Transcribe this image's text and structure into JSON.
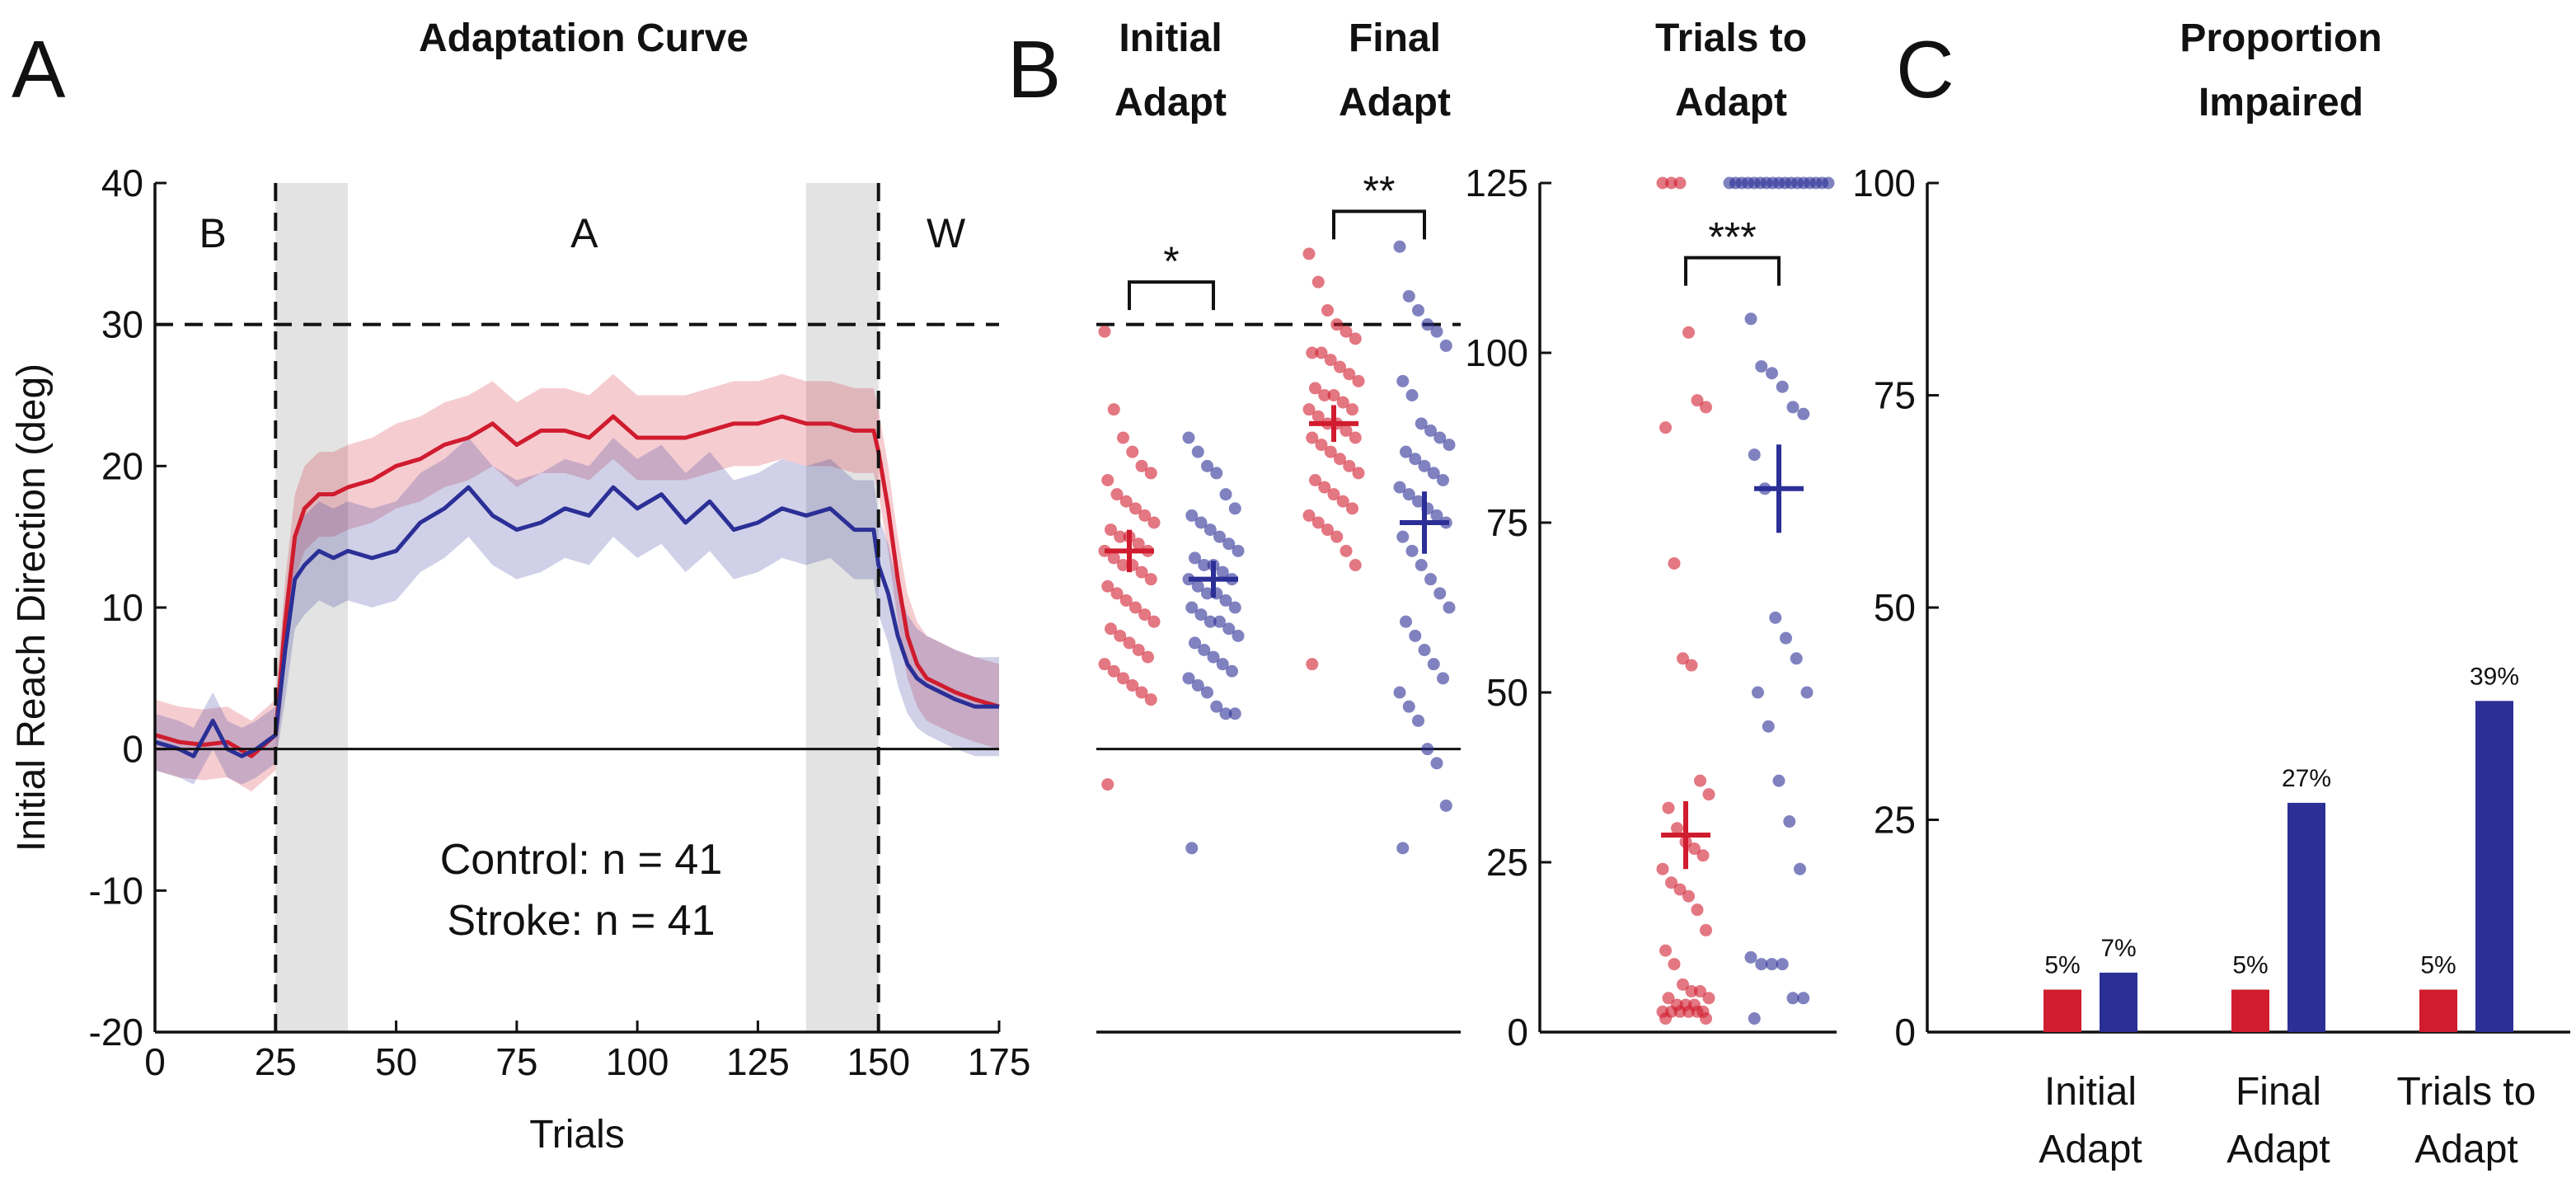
{
  "panels": {
    "A": {
      "letter": "A",
      "title": "Adaptation Curve"
    },
    "B": {
      "letter": "B",
      "titles": [
        [
          "Initial",
          "Adapt"
        ],
        [
          "Final",
          "Adapt"
        ],
        [
          "Trials to",
          "Adapt"
        ]
      ]
    },
    "C": {
      "letter": "C",
      "title": [
        "Proportion",
        "Impaired"
      ]
    }
  },
  "colors": {
    "control": "#d01c2e",
    "stroke": "#2b2f96",
    "shade": "#e3e3e3"
  },
  "chart_data": [
    {
      "id": "adaptation-curve",
      "type": "line",
      "title": "Adaptation Curve",
      "xlabel": "Trials",
      "ylabel": "Initial Reach Direction (deg)",
      "xlim": [
        0,
        175
      ],
      "ylim": [
        -20,
        40
      ],
      "xticks": [
        0,
        25,
        50,
        75,
        100,
        125,
        150,
        175
      ],
      "yticks": [
        -20,
        -10,
        0,
        10,
        20,
        30,
        40
      ],
      "phase_labels": [
        {
          "label": "B",
          "x": 12
        },
        {
          "label": "A",
          "x": 89
        },
        {
          "label": "W",
          "x": 164
        }
      ],
      "phase_boundaries": [
        25,
        150
      ],
      "shaded_windows": [
        [
          25,
          40
        ],
        [
          135,
          150
        ]
      ],
      "target_line": 30,
      "legend": [
        "Control: n = 41",
        "Stroke: n = 41"
      ],
      "series": [
        {
          "name": "Control",
          "x": [
            0,
            5,
            10,
            15,
            20,
            25,
            27,
            29,
            31,
            34,
            37,
            40,
            45,
            50,
            55,
            60,
            65,
            70,
            75,
            80,
            85,
            90,
            95,
            100,
            105,
            110,
            115,
            120,
            125,
            130,
            135,
            140,
            145,
            149,
            150,
            152,
            154,
            156,
            158,
            160,
            163,
            166,
            170,
            175
          ],
          "y": [
            1,
            0.5,
            0.3,
            0.5,
            -0.5,
            1,
            9,
            15,
            17,
            18,
            18,
            18.5,
            19,
            20,
            20.5,
            21.5,
            22,
            23,
            21.5,
            22.5,
            22.5,
            22,
            23.5,
            22,
            22,
            22,
            22.5,
            23,
            23,
            23.5,
            23,
            23,
            22.5,
            22.5,
            21,
            17,
            12,
            8,
            6,
            5,
            4.5,
            4,
            3.5,
            3
          ],
          "band": [
            2.5,
            2.5,
            2.5,
            2.5,
            2.5,
            2.5,
            3,
            3,
            3,
            3,
            3,
            3,
            3,
            3,
            3,
            3,
            3,
            3,
            3,
            3,
            3,
            3,
            3,
            3,
            3,
            3,
            3,
            3,
            3,
            3,
            3,
            3,
            3,
            3,
            3,
            3,
            3,
            3,
            3,
            3,
            3,
            3,
            3,
            3
          ]
        },
        {
          "name": "Stroke",
          "x": [
            0,
            5,
            8,
            12,
            15,
            18,
            21,
            25,
            27,
            29,
            31,
            34,
            37,
            40,
            45,
            50,
            55,
            60,
            65,
            70,
            75,
            80,
            85,
            90,
            95,
            100,
            105,
            110,
            115,
            120,
            125,
            130,
            135,
            140,
            145,
            149,
            150,
            152,
            154,
            156,
            158,
            160,
            163,
            166,
            170,
            175
          ],
          "y": [
            0.5,
            0,
            -0.5,
            2,
            0,
            -0.5,
            0,
            1,
            7,
            12,
            13,
            14,
            13.5,
            14,
            13.5,
            14,
            16,
            17,
            18.5,
            16.5,
            15.5,
            16,
            17,
            16.5,
            18.5,
            17,
            18,
            16,
            17.5,
            15.5,
            16,
            17,
            16.5,
            17,
            15.5,
            15.5,
            13,
            11,
            8,
            6,
            5,
            4.5,
            4,
            3.5,
            3,
            3
          ],
          "band": [
            2,
            2,
            2,
            2,
            2,
            2,
            2,
            2,
            3.5,
            3.5,
            3.5,
            3.5,
            3.5,
            3.5,
            3.5,
            3.5,
            3.5,
            3.5,
            3.5,
            3.5,
            3.5,
            3.5,
            3.5,
            3.5,
            3.5,
            3.5,
            3.5,
            3.5,
            3.5,
            3.5,
            3.5,
            3.5,
            3.5,
            3.5,
            3.5,
            3.5,
            3.5,
            3.5,
            3.5,
            3.5,
            3.5,
            3.5,
            3.5,
            3.5,
            3.5,
            3.5
          ]
        }
      ]
    },
    {
      "id": "initial-final-adapt",
      "type": "scatter",
      "ylim": [
        -20,
        40
      ],
      "target_line": 30,
      "significance": [
        {
          "label": "*",
          "groups": [
            "Initial Adapt Control",
            "Initial Adapt Stroke"
          ],
          "y": 33
        },
        {
          "label": "**",
          "groups": [
            "Final Adapt Control",
            "Final Adapt Stroke"
          ],
          "y": 38
        }
      ],
      "groups": [
        {
          "name": "Initial Adapt Control",
          "series": "Control",
          "mean": 14,
          "sem": 1.5,
          "values": [
            29.5,
            24,
            22,
            21,
            20,
            19.5,
            19,
            18,
            17.5,
            17,
            16.5,
            16,
            15.5,
            15,
            15,
            14.5,
            14,
            14,
            13.5,
            13,
            13,
            12.5,
            12,
            11.5,
            11,
            10.5,
            10,
            9.5,
            9,
            8.5,
            8,
            7.5,
            7,
            6.5,
            6,
            5.5,
            5,
            4.5,
            4,
            3.5,
            -2.5
          ]
        },
        {
          "name": "Initial Adapt Stroke",
          "series": "Stroke",
          "mean": 12,
          "sem": 1.3,
          "values": [
            22,
            21,
            20,
            19.5,
            18,
            17,
            16.5,
            16,
            15.5,
            15,
            14.5,
            14,
            13.5,
            13,
            13,
            12.5,
            12,
            12,
            11.5,
            11,
            11,
            10.5,
            10,
            10,
            9.5,
            9,
            9,
            8.5,
            8,
            7.5,
            7,
            6.5,
            6,
            5.5,
            5,
            4.5,
            4,
            3,
            2.5,
            2.5,
            -7
          ]
        },
        {
          "name": "Final Adapt Control",
          "series": "Control",
          "mean": 23,
          "sem": 1.3,
          "values": [
            35,
            33,
            31,
            30,
            29.5,
            29,
            28,
            28,
            27.5,
            27,
            26.5,
            26,
            25.5,
            25,
            25,
            24.5,
            24,
            24,
            23.5,
            23,
            23,
            22.5,
            22,
            22,
            21.5,
            21,
            20.5,
            20,
            19.5,
            19,
            18.5,
            18,
            17.5,
            17,
            16.5,
            16,
            15.5,
            15,
            14,
            13,
            6
          ]
        },
        {
          "name": "Final Adapt Stroke",
          "series": "Stroke",
          "mean": 16,
          "sem": 2.2,
          "values": [
            35.5,
            32,
            31,
            30,
            29.5,
            28.5,
            26,
            25,
            23,
            22.5,
            22,
            21.5,
            21,
            20.5,
            20,
            19.5,
            19,
            18.5,
            18,
            17.5,
            17,
            16.5,
            16,
            15,
            14,
            13,
            12,
            11,
            10,
            9,
            8,
            7,
            6,
            5,
            4,
            3,
            2,
            0,
            -1,
            -4,
            -7
          ]
        }
      ]
    },
    {
      "id": "trials-to-adapt",
      "type": "scatter",
      "title": "Trials to Adapt",
      "ylim": [
        0,
        125
      ],
      "yticks": [
        0,
        25,
        50,
        75,
        100,
        125
      ],
      "significance": [
        {
          "label": "***",
          "groups": [
            "Control",
            "Stroke"
          ],
          "y": 114
        }
      ],
      "groups": [
        {
          "name": "Control",
          "series": "Control",
          "mean": 29,
          "sem": 5,
          "values": [
            125,
            125,
            125,
            103,
            93,
            92,
            89,
            69,
            55,
            54,
            37,
            35,
            33,
            30,
            28,
            27,
            26,
            24,
            22,
            21,
            20,
            18,
            15,
            12,
            10,
            7,
            6,
            6,
            5,
            5,
            4,
            4,
            4,
            3,
            3,
            3,
            3,
            3,
            3,
            2,
            2
          ]
        },
        {
          "name": "Stroke",
          "series": "Stroke",
          "mean": 80,
          "sem": 6.5,
          "values": [
            125,
            125,
            125,
            125,
            125,
            125,
            125,
            125,
            125,
            125,
            125,
            125,
            125,
            125,
            125,
            125,
            125,
            105,
            98,
            97,
            95,
            92,
            91,
            85,
            80,
            61,
            58,
            55,
            50,
            50,
            45,
            37,
            31,
            24,
            11,
            10,
            10,
            10,
            5,
            5,
            2
          ]
        }
      ]
    },
    {
      "id": "proportion-impaired",
      "type": "bar",
      "title": "Proportion Impaired",
      "ylim": [
        0,
        100
      ],
      "yticks": [
        0,
        25,
        50,
        75,
        100
      ],
      "categories": [
        "Initial Adapt",
        "Final Adapt",
        "Trials to Adapt"
      ],
      "category_lines": [
        [
          "Initial",
          "Adapt"
        ],
        [
          "Final",
          "Adapt"
        ],
        [
          "Trials to",
          "Adapt"
        ]
      ],
      "series": [
        {
          "name": "Control",
          "values": [
            5,
            5,
            5
          ],
          "labels": [
            "5%",
            "5%",
            "5%"
          ]
        },
        {
          "name": "Stroke",
          "values": [
            7,
            27,
            39
          ],
          "labels": [
            "7%",
            "27%",
            "39%"
          ]
        }
      ]
    }
  ]
}
